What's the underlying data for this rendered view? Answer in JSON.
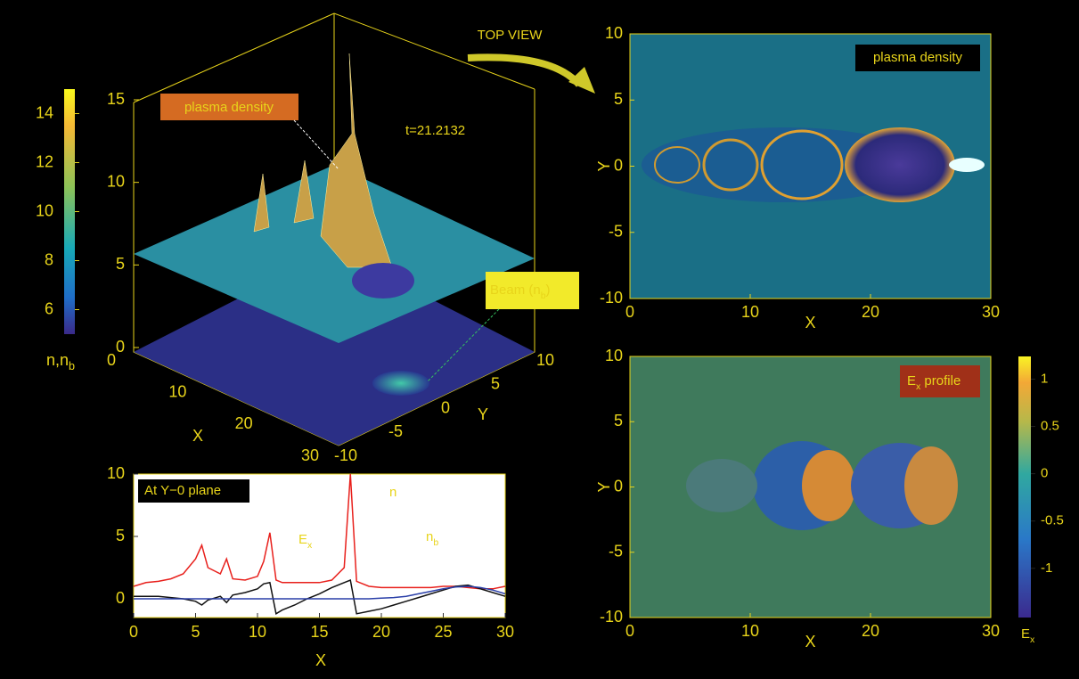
{
  "figure": {
    "colorbar_left": {
      "label": {
        "text": "n,n",
        "sub": "b"
      },
      "lim": [
        5,
        15
      ],
      "ticks": [
        6,
        8,
        10,
        12,
        14
      ]
    },
    "surface": {
      "zlim": [
        0,
        15
      ],
      "zticks": [
        0,
        5,
        10,
        15
      ],
      "xlim": [
        0,
        30
      ],
      "xticks": [
        0,
        10,
        20,
        30
      ],
      "xlabel": "X",
      "ylim": [
        -10,
        10
      ],
      "yticks": [
        -10,
        -5,
        0,
        5,
        10
      ],
      "ylabel": "Y",
      "density_label": "plasma density",
      "time_label": "t=21.2132",
      "beam_label": {
        "text": "Beam (n",
        "sub": "b",
        "end": ")"
      }
    },
    "top_view": {
      "header": "TOP VIEW",
      "box_label": "plasma density",
      "xlim": [
        0,
        30
      ],
      "xticks": [
        0,
        10,
        20,
        30
      ],
      "xlabel": "X",
      "ylim": [
        -10,
        10
      ],
      "yticks": [
        -10,
        -5,
        0,
        5,
        10
      ],
      "ylabel": "Y"
    },
    "ex_view": {
      "box_label": {
        "text": "E",
        "sub": "x",
        "end": " profile"
      },
      "xlim": [
        0,
        30
      ],
      "xticks": [
        0,
        10,
        20,
        30
      ],
      "xlabel": "X",
      "ylim": [
        -10,
        10
      ],
      "yticks": [
        -10,
        -5,
        0,
        5,
        10
      ],
      "ylabel": "Y",
      "colorbar": {
        "label": {
          "text": "E",
          "sub": "x"
        },
        "lim": [
          -1.52,
          1.24
        ],
        "ticks": [
          1,
          0.5,
          0,
          -0.5,
          -1
        ]
      }
    },
    "line_plot": {
      "type": "line",
      "box_label": "At Y−0 plane",
      "xlabel": "X",
      "xlim": [
        0,
        30
      ],
      "xticks": [
        0,
        5,
        10,
        15,
        20,
        25,
        30
      ],
      "ylim": [
        -1.5,
        10
      ],
      "yticks": [
        0,
        5,
        10
      ],
      "x": [
        0,
        1,
        2,
        3,
        4,
        5,
        5.5,
        6,
        7,
        7.5,
        8,
        9,
        10,
        10.5,
        11,
        11.5,
        12,
        13,
        14,
        15,
        16,
        17,
        17.5,
        18,
        19,
        20,
        21,
        22,
        23,
        24,
        25,
        26,
        27,
        28,
        29,
        30
      ],
      "series": [
        {
          "name": {
            "text": "n"
          },
          "color": "#e8201c",
          "values": [
            1.0,
            1.3,
            1.4,
            1.6,
            2.0,
            3.2,
            4.3,
            2.5,
            2.0,
            3.2,
            1.6,
            1.5,
            1.8,
            3.0,
            5.3,
            1.5,
            1.3,
            1.3,
            1.3,
            1.3,
            1.5,
            2.5,
            10,
            1.4,
            1.0,
            0.9,
            0.9,
            0.9,
            0.9,
            0.9,
            1.0,
            1.0,
            0.9,
            0.8,
            0.8,
            1.0
          ]
        },
        {
          "name": {
            "text": "E",
            "sub": "x"
          },
          "color": "#111111",
          "values": [
            0.2,
            0.2,
            0.2,
            0.1,
            0,
            -0.2,
            -0.5,
            -0.1,
            0.2,
            -0.3,
            0.3,
            0.5,
            0.8,
            1.2,
            1.3,
            -1.2,
            -0.9,
            -0.5,
            0,
            0.4,
            0.9,
            1.3,
            1.5,
            -1.2,
            -1.0,
            -0.8,
            -0.5,
            -0.2,
            0.1,
            0.4,
            0.7,
            1.0,
            1.1,
            0.8,
            0.5,
            0.2
          ]
        },
        {
          "name": {
            "text": "n",
            "sub": "b"
          },
          "color": "#2a3fa8",
          "values": [
            0,
            0,
            0,
            0,
            0,
            0,
            0,
            0,
            0,
            0,
            0,
            0,
            0,
            0,
            0,
            0,
            0,
            0,
            0,
            0,
            0,
            0,
            0,
            0,
            0,
            0.05,
            0.1,
            0.2,
            0.4,
            0.6,
            0.8,
            0.95,
            1.0,
            0.9,
            0.7,
            0.4
          ]
        }
      ]
    }
  }
}
